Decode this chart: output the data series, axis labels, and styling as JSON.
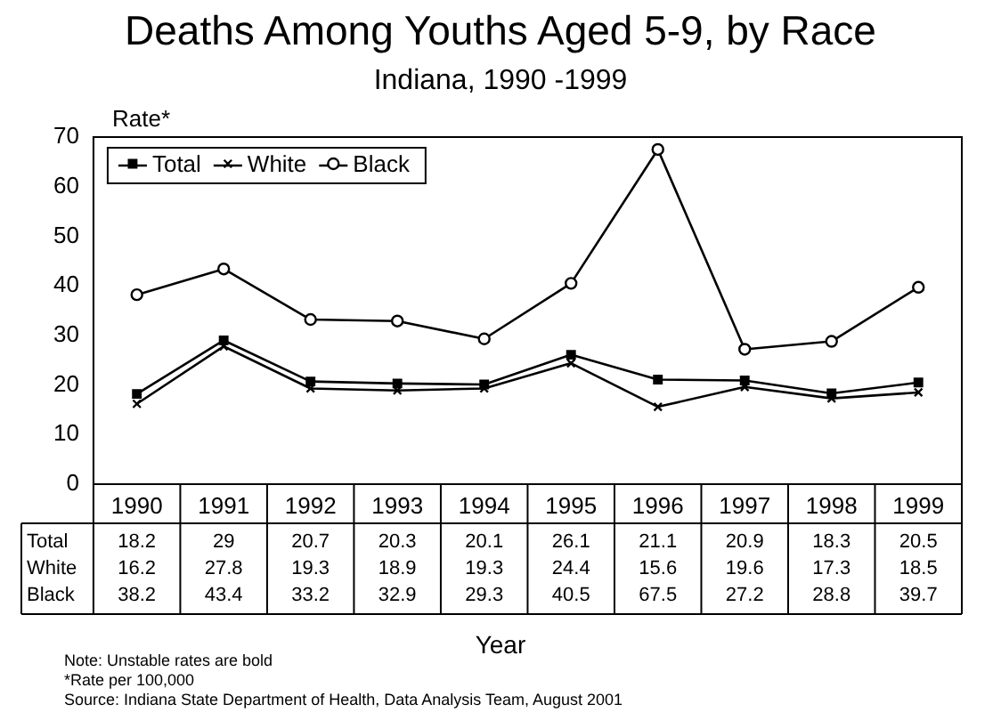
{
  "chart_data": {
    "type": "line",
    "title": "Deaths Among Youths Aged 5-9, by Race",
    "subtitle": "Indiana, 1990 -1999",
    "xlabel": "Year",
    "ylabel": "Rate*",
    "categories": [
      "1990",
      "1991",
      "1992",
      "1993",
      "1994",
      "1995",
      "1996",
      "1997",
      "1998",
      "1999"
    ],
    "series": [
      {
        "name": "Total",
        "color": "#000000",
        "marker": "square",
        "values": [
          18.2,
          29,
          20.7,
          20.3,
          20.1,
          26.1,
          21.1,
          20.9,
          18.3,
          20.5
        ]
      },
      {
        "name": "White",
        "color": "#000000",
        "marker": "cross",
        "values": [
          16.2,
          27.8,
          19.3,
          18.9,
          19.3,
          24.4,
          15.6,
          19.6,
          17.3,
          18.5
        ]
      },
      {
        "name": "Black",
        "color": "#000000",
        "marker": "circle",
        "values": [
          38.2,
          43.4,
          33.2,
          32.9,
          29.3,
          40.5,
          67.5,
          27.2,
          28.8,
          39.7
        ]
      }
    ],
    "ylim": [
      0,
      70
    ],
    "yticks": [
      0,
      10,
      20,
      30,
      40,
      50,
      60,
      70
    ],
    "grid": false,
    "legend": "top left",
    "data_labels": true,
    "line_style": "solid",
    "annotations": [
      "Note:  Unstable rates are bold",
      "*Rate per 100,000",
      "Source:  Indiana State Department of Health, Data Analysis Team, August 2001"
    ]
  }
}
